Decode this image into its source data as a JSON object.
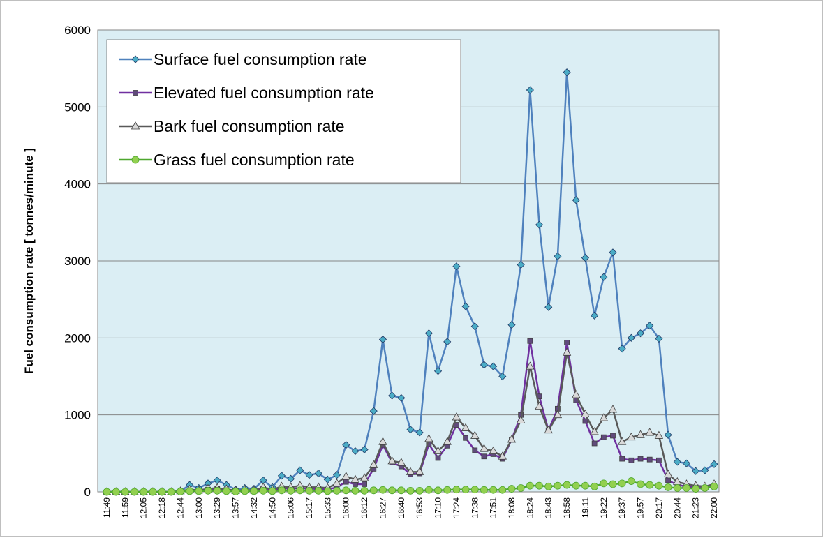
{
  "chart_data": {
    "type": "line",
    "y_label": "Fuel consumption rate [ tonnes/minute ]",
    "categories": [
      "11:49",
      null,
      "11:59",
      null,
      "12:05",
      null,
      "12:18",
      null,
      "12:44",
      null,
      "13:00",
      null,
      "13:29",
      null,
      "13:57",
      null,
      "14:32",
      null,
      "14:50",
      null,
      "15:06",
      null,
      "15:17",
      null,
      "15:33",
      null,
      "16:00",
      null,
      "16:12",
      null,
      "16:27",
      null,
      "16:40",
      null,
      "16:53",
      null,
      "17:10",
      null,
      "17:24",
      null,
      "17:38",
      null,
      "17:51",
      null,
      "18:08",
      null,
      "18:24",
      null,
      "18:43",
      null,
      "18:58",
      null,
      "19:11",
      null,
      "19:22",
      null,
      "19:37",
      null,
      "19:57",
      null,
      "20:17",
      null,
      "20:44",
      null,
      "21:23",
      null,
      "22:00"
    ],
    "series": [
      {
        "name": "Surface fuel consumption rate",
        "color": "#4f81bd",
        "marker": "diamond",
        "marker_color": "#4bacc6",
        "values": [
          0,
          0,
          0,
          0,
          0,
          0,
          0,
          0,
          10,
          90,
          50,
          110,
          150,
          90,
          30,
          50,
          40,
          150,
          60,
          210,
          170,
          280,
          220,
          240,
          160,
          220,
          610,
          530,
          550,
          1050,
          1980,
          1250,
          1220,
          810,
          770,
          2060,
          1570,
          1950,
          2930,
          2410,
          2150,
          1650,
          1630,
          1500,
          2170,
          2950,
          5220,
          3470,
          2400,
          3060,
          5450,
          3790,
          3040,
          2290,
          2790,
          3110,
          1860,
          2000,
          2060,
          2160,
          1990,
          740,
          390,
          370,
          270,
          280,
          360
        ]
      },
      {
        "name": "Elevated fuel consumption rate",
        "color": "#7030a0",
        "marker": "square",
        "marker_color": "#604a7b",
        "values": [
          0,
          0,
          0,
          0,
          0,
          0,
          0,
          0,
          5,
          20,
          15,
          30,
          40,
          25,
          10,
          15,
          15,
          40,
          20,
          50,
          40,
          50,
          40,
          40,
          30,
          60,
          130,
          100,
          100,
          300,
          610,
          380,
          330,
          230,
          240,
          620,
          440,
          600,
          870,
          700,
          540,
          460,
          490,
          430,
          680,
          1000,
          1960,
          1240,
          800,
          1080,
          1940,
          1190,
          920,
          630,
          710,
          730,
          430,
          410,
          430,
          420,
          410,
          150,
          90,
          70,
          60,
          50,
          70
        ]
      },
      {
        "name": "Bark fuel consumption rate",
        "color": "#595959",
        "marker": "triangle",
        "marker_color": "#d9d9d9",
        "values": [
          0,
          0,
          0,
          0,
          0,
          0,
          0,
          0,
          10,
          30,
          20,
          40,
          50,
          35,
          15,
          25,
          20,
          60,
          30,
          70,
          60,
          80,
          60,
          60,
          50,
          110,
          200,
          160,
          180,
          350,
          650,
          400,
          380,
          260,
          260,
          690,
          530,
          650,
          970,
          830,
          730,
          560,
          530,
          460,
          680,
          930,
          1630,
          1110,
          800,
          1000,
          1810,
          1260,
          1010,
          780,
          960,
          1070,
          650,
          710,
          740,
          770,
          730,
          230,
          130,
          100,
          80,
          70,
          100
        ]
      },
      {
        "name": "Grass fuel consumption rate",
        "color": "#4ea72e",
        "marker": "circle",
        "marker_color": "#92d050",
        "values": [
          0,
          0,
          0,
          0,
          0,
          0,
          0,
          0,
          5,
          10,
          10,
          15,
          15,
          10,
          5,
          10,
          10,
          15,
          10,
          20,
          15,
          20,
          15,
          15,
          10,
          15,
          20,
          15,
          15,
          20,
          25,
          20,
          20,
          15,
          15,
          25,
          20,
          25,
          30,
          30,
          30,
          25,
          25,
          25,
          40,
          50,
          80,
          80,
          70,
          80,
          90,
          80,
          80,
          70,
          110,
          100,
          110,
          140,
          100,
          90,
          80,
          60,
          50,
          50,
          40,
          50,
          70
        ]
      }
    ],
    "ylim": [
      0,
      6000
    ],
    "yticks": [
      0,
      1000,
      2000,
      3000,
      4000,
      5000,
      6000
    ],
    "grid": true,
    "plot_background": "#dbeef4"
  }
}
